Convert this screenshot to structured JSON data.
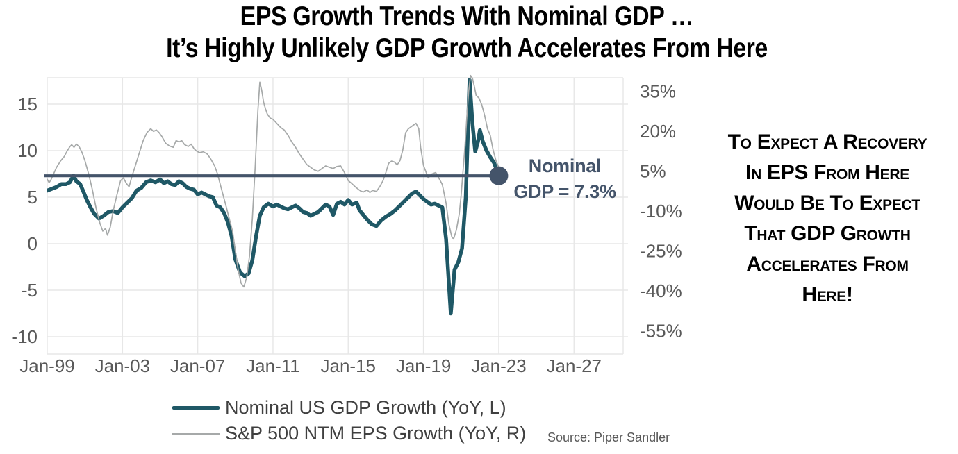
{
  "title": {
    "line1": "EPS Growth Trends With Nominal GDP …",
    "line2": "It’s Highly Unlikely GDP Growth Accelerates From Here"
  },
  "side_note": {
    "lines": [
      "To Expect A Recovery",
      "In EPS From Here",
      "Would Be To Expect",
      "That GDP Growth",
      "Accelerates From",
      "Here!"
    ]
  },
  "colors": {
    "gdp_line": "#1F5866",
    "eps_line": "#A6A9A9",
    "reference": "#44546A",
    "grid": "#E7E7E7",
    "axis_text": "#595959"
  },
  "chart_data": {
    "type": "line",
    "title": "EPS Growth Trends With Nominal GDP … It’s Highly Unlikely GDP Growth Accelerates From Here",
    "x_axis": {
      "tick_years": [
        1999,
        2003,
        2007,
        2011,
        2015,
        2019,
        2023,
        2027
      ],
      "tick_labels": [
        "Jan-99",
        "Jan-03",
        "Jan-07",
        "Jan-11",
        "Jan-15",
        "Jan-19",
        "Jan-23",
        "Jan-27"
      ]
    },
    "left_axis": {
      "label": "Nominal US GDP Growth (YoY, %)",
      "ticks": [
        15,
        10,
        5,
        0,
        -5,
        -10
      ],
      "tick_labels": [
        "15",
        "10",
        "5",
        "0",
        "-5",
        "-10"
      ]
    },
    "right_axis": {
      "label": "S&P 500 NTM EPS Growth (YoY, %)",
      "ticks": [
        35,
        20,
        5,
        -10,
        -25,
        -40,
        -55
      ],
      "tick_labels": [
        "35%",
        "20%",
        "5%",
        "-10%",
        "-25%",
        "-40%",
        "-55%"
      ]
    },
    "grid": true,
    "legend_position": "bottom-left",
    "series": [
      {
        "name": "Nominal US GDP Growth (YoY, L)",
        "axis": "left",
        "color": "#1F5866",
        "stroke_width": 5.5,
        "points": [
          [
            1999,
            5.7
          ],
          [
            1999.25,
            5.9
          ],
          [
            1999.5,
            6.1
          ],
          [
            1999.75,
            6.4
          ],
          [
            2000,
            6.4
          ],
          [
            2000.2,
            6.6
          ],
          [
            2000.4,
            7.3
          ],
          [
            2000.55,
            6.7
          ],
          [
            2000.75,
            6.4
          ],
          [
            2000.9,
            5.7
          ],
          [
            2001.1,
            4.7
          ],
          [
            2001.3,
            3.9
          ],
          [
            2001.5,
            3.2
          ],
          [
            2001.75,
            2.7
          ],
          [
            2002,
            3
          ],
          [
            2002.25,
            3.4
          ],
          [
            2002.5,
            3.5
          ],
          [
            2002.75,
            3.3
          ],
          [
            2003,
            3.9
          ],
          [
            2003.25,
            4.4
          ],
          [
            2003.5,
            4.9
          ],
          [
            2003.75,
            5.7
          ],
          [
            2004,
            6
          ],
          [
            2004.25,
            6.6
          ],
          [
            2004.5,
            6.8
          ],
          [
            2004.75,
            6.6
          ],
          [
            2005,
            6.9
          ],
          [
            2005.2,
            6.5
          ],
          [
            2005.4,
            6.7
          ],
          [
            2005.6,
            6.4
          ],
          [
            2005.8,
            6.3
          ],
          [
            2006,
            6.7
          ],
          [
            2006.2,
            6.5
          ],
          [
            2006.4,
            6.1
          ],
          [
            2006.6,
            5.9
          ],
          [
            2006.8,
            5.8
          ],
          [
            2007,
            5.3
          ],
          [
            2007.2,
            5.5
          ],
          [
            2007.4,
            5.3
          ],
          [
            2007.6,
            5.1
          ],
          [
            2007.8,
            5
          ],
          [
            2008,
            4.1
          ],
          [
            2008.2,
            3.9
          ],
          [
            2008.4,
            3.3
          ],
          [
            2008.6,
            2.3
          ],
          [
            2008.8,
            0.8
          ],
          [
            2009,
            -1.7
          ],
          [
            2009.25,
            -3.1
          ],
          [
            2009.5,
            -3.5
          ],
          [
            2009.7,
            -3.2
          ],
          [
            2009.9,
            -1.8
          ],
          [
            2010.1,
            0.8
          ],
          [
            2010.3,
            3
          ],
          [
            2010.5,
            3.9
          ],
          [
            2010.75,
            4.3
          ],
          [
            2011,
            4
          ],
          [
            2011.2,
            4.2
          ],
          [
            2011.4,
            4
          ],
          [
            2011.6,
            3.8
          ],
          [
            2011.8,
            3.7
          ],
          [
            2012,
            3.9
          ],
          [
            2012.2,
            4.1
          ],
          [
            2012.4,
            3.8
          ],
          [
            2012.6,
            3.4
          ],
          [
            2012.8,
            3.3
          ],
          [
            2013,
            3
          ],
          [
            2013.2,
            3.2
          ],
          [
            2013.4,
            3.4
          ],
          [
            2013.6,
            3.8
          ],
          [
            2013.8,
            4.2
          ],
          [
            2014,
            4
          ],
          [
            2014.2,
            3.1
          ],
          [
            2014.4,
            4.3
          ],
          [
            2014.6,
            4.5
          ],
          [
            2014.8,
            4.2
          ],
          [
            2015,
            4.7
          ],
          [
            2015.2,
            4.2
          ],
          [
            2015.45,
            4.4
          ],
          [
            2015.6,
            3.6
          ],
          [
            2015.8,
            3.1
          ],
          [
            2016,
            2.6
          ],
          [
            2016.25,
            2.1
          ],
          [
            2016.5,
            1.9
          ],
          [
            2016.75,
            2.5
          ],
          [
            2017,
            2.9
          ],
          [
            2017.25,
            3.2
          ],
          [
            2017.5,
            3.6
          ],
          [
            2017.75,
            4.1
          ],
          [
            2018,
            4.6
          ],
          [
            2018.2,
            5
          ],
          [
            2018.4,
            5.4
          ],
          [
            2018.6,
            5.6
          ],
          [
            2018.8,
            5.2
          ],
          [
            2019,
            4.8
          ],
          [
            2019.2,
            4.5
          ],
          [
            2019.4,
            4.2
          ],
          [
            2019.6,
            4.3
          ],
          [
            2019.8,
            4.1
          ],
          [
            2020,
            3.9
          ],
          [
            2020.2,
            0.5
          ],
          [
            2020.45,
            -7.5
          ],
          [
            2020.65,
            -2.8
          ],
          [
            2020.85,
            -2
          ],
          [
            2021.05,
            -0.5
          ],
          [
            2021.25,
            5
          ],
          [
            2021.45,
            17.6
          ],
          [
            2021.6,
            13
          ],
          [
            2021.75,
            9.9
          ],
          [
            2021.9,
            11
          ],
          [
            2022,
            12.2
          ],
          [
            2022.15,
            11
          ],
          [
            2022.35,
            10
          ],
          [
            2022.55,
            9.3
          ],
          [
            2022.75,
            8.7
          ],
          [
            2022.9,
            7.9
          ],
          [
            2023,
            7.3
          ]
        ]
      },
      {
        "name": "S&P 500 NTM EPS Growth (YoY, R)",
        "axis": "right",
        "color": "#A6A9A9",
        "stroke_width": 1.7,
        "points": [
          [
            1999,
            2
          ],
          [
            1999.1,
            0.7
          ],
          [
            1999.2,
            1.8
          ],
          [
            1999.35,
            4.2
          ],
          [
            1999.5,
            6.5
          ],
          [
            1999.7,
            8.8
          ],
          [
            1999.9,
            10.5
          ],
          [
            2000.05,
            12.5
          ],
          [
            2000.2,
            14.2
          ],
          [
            2000.3,
            15
          ],
          [
            2000.42,
            14
          ],
          [
            2000.55,
            15.2
          ],
          [
            2000.7,
            14.2
          ],
          [
            2000.85,
            12
          ],
          [
            2001,
            9
          ],
          [
            2001.2,
            4
          ],
          [
            2001.4,
            -2
          ],
          [
            2001.6,
            -9
          ],
          [
            2001.8,
            -14.5
          ],
          [
            2001.95,
            -17.5
          ],
          [
            2002.1,
            -16.5
          ],
          [
            2002.2,
            -19
          ],
          [
            2002.35,
            -16
          ],
          [
            2002.5,
            -10
          ],
          [
            2002.7,
            -4
          ],
          [
            2002.9,
            1.5
          ],
          [
            2003.05,
            2.5
          ],
          [
            2003.2,
            0.5
          ],
          [
            2003.35,
            -0.8
          ],
          [
            2003.5,
            3
          ],
          [
            2003.7,
            7.5
          ],
          [
            2003.9,
            12
          ],
          [
            2004.1,
            16.5
          ],
          [
            2004.3,
            19.5
          ],
          [
            2004.5,
            21
          ],
          [
            2004.65,
            20
          ],
          [
            2004.8,
            20.5
          ],
          [
            2004.95,
            19.5
          ],
          [
            2005.1,
            18
          ],
          [
            2005.3,
            15.5
          ],
          [
            2005.5,
            14.5
          ],
          [
            2005.7,
            14
          ],
          [
            2005.85,
            16.5
          ],
          [
            2006,
            16
          ],
          [
            2006.15,
            16.5
          ],
          [
            2006.3,
            15
          ],
          [
            2006.5,
            14.3
          ],
          [
            2006.65,
            15.2
          ],
          [
            2006.8,
            13.5
          ],
          [
            2006.95,
            12.5
          ],
          [
            2007.1,
            12
          ],
          [
            2007.3,
            12.3
          ],
          [
            2007.5,
            11.5
          ],
          [
            2007.7,
            9.5
          ],
          [
            2007.9,
            7
          ],
          [
            2008.05,
            4
          ],
          [
            2008.2,
            0
          ],
          [
            2008.35,
            -4
          ],
          [
            2008.5,
            -8
          ],
          [
            2008.7,
            -13.5
          ],
          [
            2008.85,
            -17.5
          ],
          [
            2009,
            -25
          ],
          [
            2009.15,
            -32
          ],
          [
            2009.3,
            -37
          ],
          [
            2009.45,
            -38.5
          ],
          [
            2009.6,
            -35
          ],
          [
            2009.75,
            -27
          ],
          [
            2009.9,
            -13
          ],
          [
            2010.05,
            6
          ],
          [
            2010.2,
            28
          ],
          [
            2010.3,
            38.5
          ],
          [
            2010.4,
            35.5
          ],
          [
            2010.5,
            31
          ],
          [
            2010.6,
            28.5
          ],
          [
            2010.7,
            26.5
          ],
          [
            2010.85,
            25
          ],
          [
            2011,
            24.5
          ],
          [
            2011.2,
            23
          ],
          [
            2011.4,
            21.5
          ],
          [
            2011.6,
            20.5
          ],
          [
            2011.8,
            18.5
          ],
          [
            2012,
            16
          ],
          [
            2012.2,
            14
          ],
          [
            2012.4,
            11.5
          ],
          [
            2012.6,
            9.5
          ],
          [
            2012.8,
            7.5
          ],
          [
            2013,
            6.5
          ],
          [
            2013.2,
            5.5
          ],
          [
            2013.4,
            5
          ],
          [
            2013.6,
            6
          ],
          [
            2013.8,
            7
          ],
          [
            2014,
            6.5
          ],
          [
            2014.2,
            6
          ],
          [
            2014.4,
            6.8
          ],
          [
            2014.6,
            7
          ],
          [
            2014.8,
            4.5
          ],
          [
            2015,
            1.5
          ],
          [
            2015.2,
            0.3
          ],
          [
            2015.4,
            -1
          ],
          [
            2015.65,
            -2.4
          ],
          [
            2015.8,
            -2.8
          ],
          [
            2016,
            -2
          ],
          [
            2016.15,
            -3
          ],
          [
            2016.3,
            -2.2
          ],
          [
            2016.5,
            -2.6
          ],
          [
            2016.7,
            -0.5
          ],
          [
            2016.85,
            1.5
          ],
          [
            2017,
            4.5
          ],
          [
            2017.15,
            8
          ],
          [
            2017.3,
            8.8
          ],
          [
            2017.45,
            8.5
          ],
          [
            2017.6,
            7.4
          ],
          [
            2017.75,
            9
          ],
          [
            2017.9,
            13
          ],
          [
            2018.05,
            19.5
          ],
          [
            2018.2,
            21
          ],
          [
            2018.4,
            22
          ],
          [
            2018.6,
            23
          ],
          [
            2018.75,
            21
          ],
          [
            2018.85,
            14
          ],
          [
            2019,
            7.2
          ],
          [
            2019.25,
            2.5
          ],
          [
            2019.45,
            4
          ],
          [
            2019.65,
            4.5
          ],
          [
            2019.85,
            2
          ],
          [
            2020,
            0
          ],
          [
            2020.2,
            -7
          ],
          [
            2020.35,
            -15
          ],
          [
            2020.5,
            -19.5
          ],
          [
            2020.6,
            -20.5
          ],
          [
            2020.75,
            -17
          ],
          [
            2020.9,
            -11
          ],
          [
            2021,
            -4
          ],
          [
            2021.1,
            5
          ],
          [
            2021.2,
            14
          ],
          [
            2021.3,
            25
          ],
          [
            2021.4,
            35
          ],
          [
            2021.5,
            41
          ],
          [
            2021.6,
            40
          ],
          [
            2021.7,
            37
          ],
          [
            2021.8,
            33.5
          ],
          [
            2021.95,
            32.5
          ],
          [
            2022.1,
            30
          ],
          [
            2022.25,
            26
          ],
          [
            2022.4,
            21
          ],
          [
            2022.55,
            18.5
          ],
          [
            2022.7,
            13
          ],
          [
            2022.85,
            9
          ],
          [
            2023,
            6.5
          ]
        ]
      }
    ],
    "reference_line": {
      "value": 7.3,
      "axis": "left",
      "start_year": 1998.85,
      "end_year": 2023.0,
      "color": "#44546A",
      "label_line1": "Nominal",
      "label_line2": "GDP = 7.3%"
    },
    "source": "Source: Piper Sandler"
  }
}
